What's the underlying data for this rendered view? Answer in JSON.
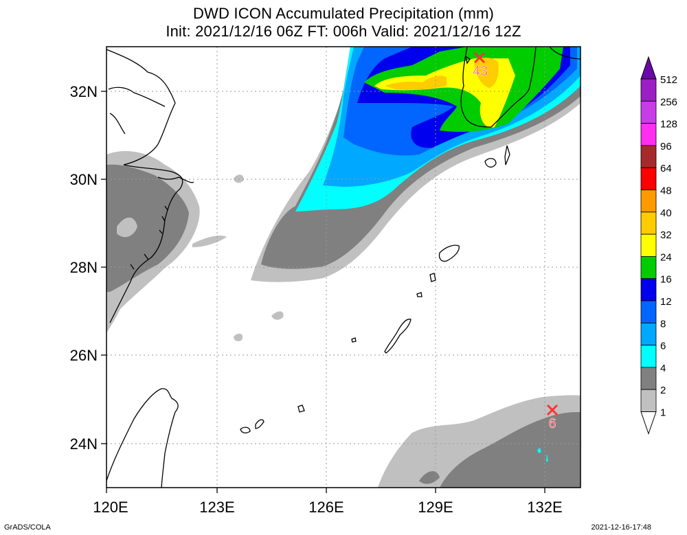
{
  "title": {
    "line1": "DWD ICON Accumulated Precipitation (mm)",
    "line2": "Init: 2021/12/16 06Z  FT: 006h  Valid: 2021/12/16 12Z"
  },
  "axes": {
    "x_ticks": [
      "120E",
      "123E",
      "126E",
      "129E",
      "132E"
    ],
    "y_ticks": [
      "32N",
      "30N",
      "28N",
      "26N",
      "24N"
    ]
  },
  "markers": [
    {
      "label": "43",
      "lon": 130.4,
      "lat": 32.7
    },
    {
      "label": "6",
      "lon": 132.3,
      "lat": 24.7
    }
  ],
  "colorbar": {
    "levels": [
      "512",
      "256",
      "128",
      "96",
      "64",
      "48",
      "40",
      "32",
      "24",
      "16",
      "12",
      "8",
      "6",
      "4",
      "2",
      "1"
    ],
    "colors": [
      "#6a0aa6",
      "#9b1fc4",
      "#c83ce8",
      "#ff2ef0",
      "#a72a2a",
      "#ff0000",
      "#ff9900",
      "#ffcc00",
      "#ffff00",
      "#00cc00",
      "#0000ee",
      "#0066ff",
      "#00a8ff",
      "#00ffff",
      "#808080",
      "#c0c0c0"
    ]
  },
  "footer": {
    "left": "GrADS/COLA",
    "right": "2021-12-16-17:48"
  }
}
